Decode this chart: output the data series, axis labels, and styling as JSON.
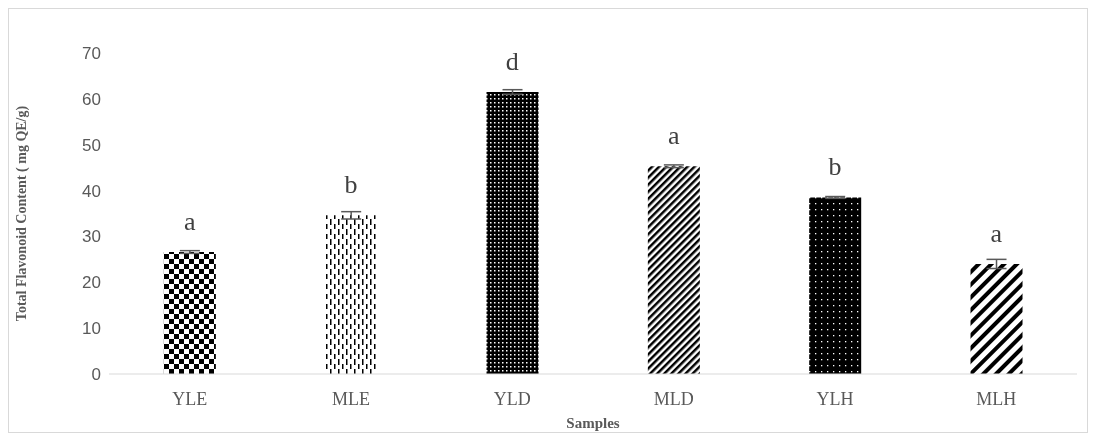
{
  "chart_data": {
    "type": "bar",
    "xlabel": "Samples",
    "ylabel": "Total Flavonoid Content ( mg QE/g)",
    "categories": [
      "YLE",
      "MLE",
      "YLD",
      "MLD",
      "YLH",
      "MLH"
    ],
    "values": [
      26.6,
      34.6,
      61.5,
      45.3,
      38.5,
      24.0
    ],
    "errors": [
      0.3,
      0.8,
      0.5,
      0.3,
      0.2,
      1.0
    ],
    "color": "#000000",
    "ylim": [
      0,
      70
    ],
    "yticks": [
      0,
      10,
      20,
      30,
      40,
      50,
      60,
      70
    ],
    "grid": false,
    "legend": false,
    "annotations": [
      {
        "text": "a",
        "x": "YLE",
        "y": 26.6
      },
      {
        "text": "b",
        "x": "MLE",
        "y": 34.6
      },
      {
        "text": "d",
        "x": "YLD",
        "y": 61.5
      },
      {
        "text": "a",
        "x": "MLD",
        "y": 45.3
      },
      {
        "text": "b",
        "x": "YLH",
        "y": 38.5
      },
      {
        "text": "a",
        "x": "MLH",
        "y": 24.0
      }
    ]
  }
}
